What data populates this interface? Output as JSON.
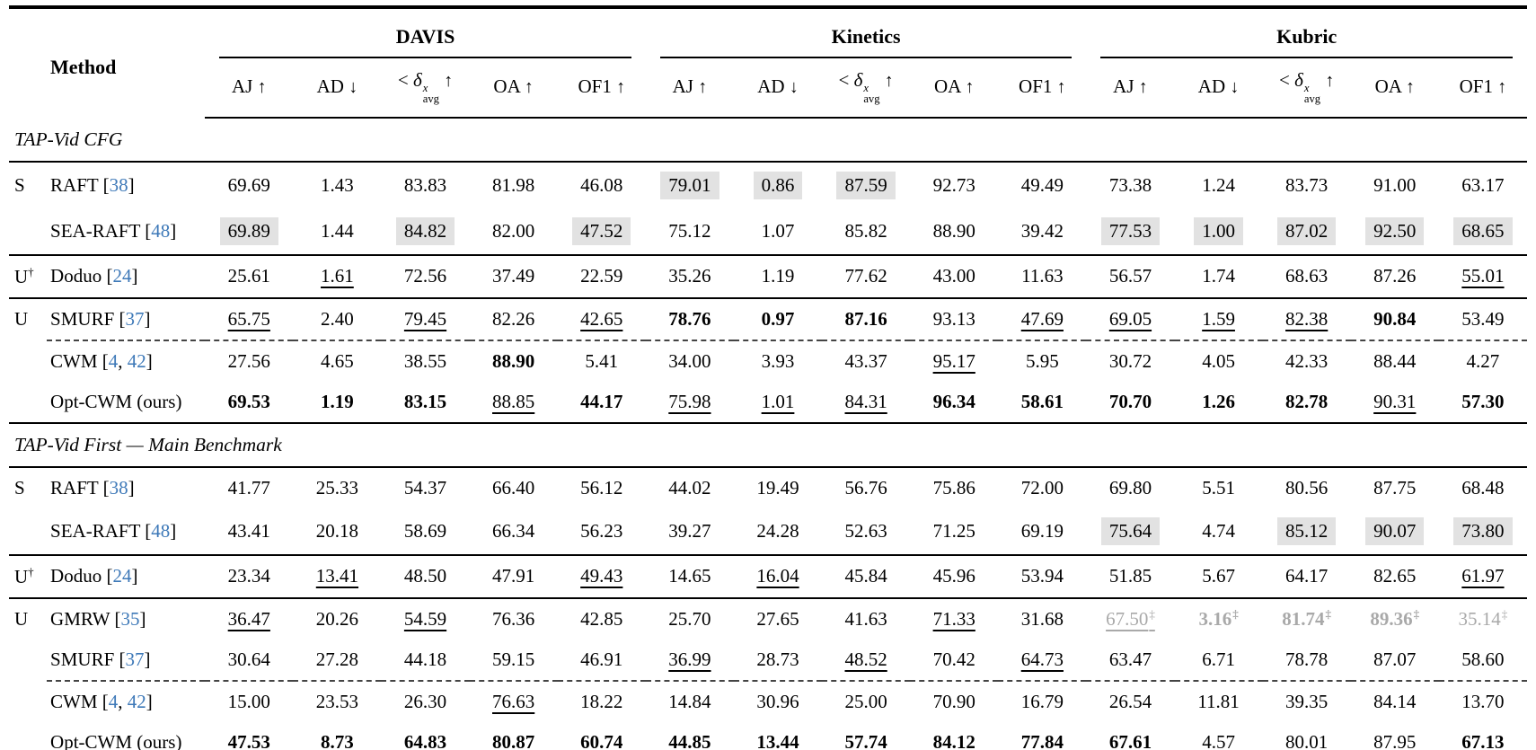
{
  "table": {
    "method_header": "Method",
    "groups": [
      "DAVIS",
      "Kinetics",
      "Kubric"
    ],
    "metrics": [
      {
        "label": "AJ",
        "arrow": "↑"
      },
      {
        "label": "AD",
        "arrow": "↓"
      },
      {
        "delta": "δ",
        "prefix": "<",
        "sup": "x",
        "sub": "avg",
        "arrow": "↑"
      },
      {
        "label": "OA",
        "arrow": "↑"
      },
      {
        "label": "OF1",
        "arrow": "↑"
      }
    ],
    "style_legend": {
      "b": "bold-best",
      "u": "underline-second-best",
      "h": "gray-highlight",
      "g": "gray-text",
      "d": "double-dagger"
    },
    "colors": {
      "cite_blue": "#3e79b8",
      "highlight_gray": "#e2e2e2",
      "gray_text": "#a9a9a9"
    },
    "sections": [
      {
        "title": "TAP-Vid CFG",
        "rows": [
          {
            "group": "S",
            "group_sup": "",
            "method": "RAFT",
            "cites": [
              "38"
            ],
            "rule": "",
            "cells": [
              [
                "69.69",
                ""
              ],
              [
                "1.43",
                ""
              ],
              [
                "83.83",
                ""
              ],
              [
                "81.98",
                ""
              ],
              [
                "46.08",
                ""
              ],
              [
                "79.01",
                "h"
              ],
              [
                "0.86",
                "h"
              ],
              [
                "87.59",
                "h"
              ],
              [
                "92.73",
                ""
              ],
              [
                "49.49",
                ""
              ],
              [
                "73.38",
                ""
              ],
              [
                "1.24",
                ""
              ],
              [
                "83.73",
                ""
              ],
              [
                "91.00",
                ""
              ],
              [
                "63.17",
                ""
              ]
            ]
          },
          {
            "group": "",
            "group_sup": "",
            "method": "SEA-RAFT",
            "cites": [
              "48"
            ],
            "rule": "",
            "cells": [
              [
                "69.89",
                "h"
              ],
              [
                "1.44",
                ""
              ],
              [
                "84.82",
                "h"
              ],
              [
                "82.00",
                ""
              ],
              [
                "47.52",
                "h"
              ],
              [
                "75.12",
                ""
              ],
              [
                "1.07",
                ""
              ],
              [
                "85.82",
                ""
              ],
              [
                "88.90",
                ""
              ],
              [
                "39.42",
                ""
              ],
              [
                "77.53",
                "h"
              ],
              [
                "1.00",
                "h"
              ],
              [
                "87.02",
                "h"
              ],
              [
                "92.50",
                "h"
              ],
              [
                "68.65",
                "h"
              ]
            ]
          },
          {
            "group": "U",
            "group_sup": "†",
            "method": "Doduo",
            "cites": [
              "24"
            ],
            "rule": "solid",
            "cells": [
              [
                "25.61",
                ""
              ],
              [
                "1.61",
                "u"
              ],
              [
                "72.56",
                ""
              ],
              [
                "37.49",
                ""
              ],
              [
                "22.59",
                ""
              ],
              [
                "35.26",
                ""
              ],
              [
                "1.19",
                ""
              ],
              [
                "77.62",
                ""
              ],
              [
                "43.00",
                ""
              ],
              [
                "11.63",
                ""
              ],
              [
                "56.57",
                ""
              ],
              [
                "1.74",
                ""
              ],
              [
                "68.63",
                ""
              ],
              [
                "87.26",
                ""
              ],
              [
                "55.01",
                "u"
              ]
            ]
          },
          {
            "group": "U",
            "group_sup": "",
            "method": "SMURF",
            "cites": [
              "37"
            ],
            "rule": "solid",
            "cells": [
              [
                "65.75",
                "u"
              ],
              [
                "2.40",
                ""
              ],
              [
                "79.45",
                "u"
              ],
              [
                "82.26",
                ""
              ],
              [
                "42.65",
                "u"
              ],
              [
                "78.76",
                "b"
              ],
              [
                "0.97",
                "b"
              ],
              [
                "87.16",
                "b"
              ],
              [
                "93.13",
                ""
              ],
              [
                "47.69",
                "u"
              ],
              [
                "69.05",
                "u"
              ],
              [
                "1.59",
                "u"
              ],
              [
                "82.38",
                "u"
              ],
              [
                "90.84",
                "b"
              ],
              [
                "53.49",
                ""
              ]
            ]
          },
          {
            "group": "",
            "group_sup": "",
            "method": "CWM",
            "cites": [
              "4",
              "42"
            ],
            "rule": "dashed",
            "cells": [
              [
                "27.56",
                ""
              ],
              [
                "4.65",
                ""
              ],
              [
                "38.55",
                ""
              ],
              [
                "88.90",
                "b"
              ],
              [
                "5.41",
                ""
              ],
              [
                "34.00",
                ""
              ],
              [
                "3.93",
                ""
              ],
              [
                "43.37",
                ""
              ],
              [
                "95.17",
                "u"
              ],
              [
                "5.95",
                ""
              ],
              [
                "30.72",
                ""
              ],
              [
                "4.05",
                ""
              ],
              [
                "42.33",
                ""
              ],
              [
                "88.44",
                ""
              ],
              [
                "4.27",
                ""
              ]
            ]
          },
          {
            "group": "",
            "group_sup": "",
            "method": "Opt-CWM (ours)",
            "cites": [],
            "rule": "",
            "cells": [
              [
                "69.53",
                "b"
              ],
              [
                "1.19",
                "b"
              ],
              [
                "83.15",
                "b"
              ],
              [
                "88.85",
                "u"
              ],
              [
                "44.17",
                "b"
              ],
              [
                "75.98",
                "u"
              ],
              [
                "1.01",
                "u"
              ],
              [
                "84.31",
                "u"
              ],
              [
                "96.34",
                "b"
              ],
              [
                "58.61",
                "b"
              ],
              [
                "70.70",
                "b"
              ],
              [
                "1.26",
                "b"
              ],
              [
                "82.78",
                "b"
              ],
              [
                "90.31",
                "u"
              ],
              [
                "57.30",
                "b"
              ]
            ]
          }
        ]
      },
      {
        "title": "TAP-Vid First — Main Benchmark",
        "rows": [
          {
            "group": "S",
            "group_sup": "",
            "method": "RAFT",
            "cites": [
              "38"
            ],
            "rule": "",
            "cells": [
              [
                "41.77",
                ""
              ],
              [
                "25.33",
                ""
              ],
              [
                "54.37",
                ""
              ],
              [
                "66.40",
                ""
              ],
              [
                "56.12",
                ""
              ],
              [
                "44.02",
                ""
              ],
              [
                "19.49",
                ""
              ],
              [
                "56.76",
                ""
              ],
              [
                "75.86",
                ""
              ],
              [
                "72.00",
                ""
              ],
              [
                "69.80",
                ""
              ],
              [
                "5.51",
                ""
              ],
              [
                "80.56",
                ""
              ],
              [
                "87.75",
                ""
              ],
              [
                "68.48",
                ""
              ]
            ]
          },
          {
            "group": "",
            "group_sup": "",
            "method": "SEA-RAFT",
            "cites": [
              "48"
            ],
            "rule": "",
            "cells": [
              [
                "43.41",
                ""
              ],
              [
                "20.18",
                ""
              ],
              [
                "58.69",
                ""
              ],
              [
                "66.34",
                ""
              ],
              [
                "56.23",
                ""
              ],
              [
                "39.27",
                ""
              ],
              [
                "24.28",
                ""
              ],
              [
                "52.63",
                ""
              ],
              [
                "71.25",
                ""
              ],
              [
                "69.19",
                ""
              ],
              [
                "75.64",
                "h"
              ],
              [
                "4.74",
                ""
              ],
              [
                "85.12",
                "h"
              ],
              [
                "90.07",
                "h"
              ],
              [
                "73.80",
                "h"
              ]
            ]
          },
          {
            "group": "U",
            "group_sup": "†",
            "method": "Doduo",
            "cites": [
              "24"
            ],
            "rule": "solid",
            "cells": [
              [
                "23.34",
                ""
              ],
              [
                "13.41",
                "u"
              ],
              [
                "48.50",
                ""
              ],
              [
                "47.91",
                ""
              ],
              [
                "49.43",
                "u"
              ],
              [
                "14.65",
                ""
              ],
              [
                "16.04",
                "u"
              ],
              [
                "45.84",
                ""
              ],
              [
                "45.96",
                ""
              ],
              [
                "53.94",
                ""
              ],
              [
                "51.85",
                ""
              ],
              [
                "5.67",
                ""
              ],
              [
                "64.17",
                ""
              ],
              [
                "82.65",
                ""
              ],
              [
                "61.97",
                "u"
              ]
            ]
          },
          {
            "group": "U",
            "group_sup": "",
            "method": "GMRW",
            "cites": [
              "35"
            ],
            "rule": "solid",
            "cells": [
              [
                "36.47",
                "u"
              ],
              [
                "20.26",
                ""
              ],
              [
                "54.59",
                "u"
              ],
              [
                "76.36",
                ""
              ],
              [
                "42.85",
                ""
              ],
              [
                "25.70",
                ""
              ],
              [
                "27.65",
                ""
              ],
              [
                "41.63",
                ""
              ],
              [
                "71.33",
                "u"
              ],
              [
                "31.68",
                ""
              ],
              [
                "67.50",
                "gud"
              ],
              [
                "3.16",
                "gbd"
              ],
              [
                "81.74",
                "gbd"
              ],
              [
                "89.36",
                "gbd"
              ],
              [
                "35.14",
                "gd"
              ]
            ]
          },
          {
            "group": "",
            "group_sup": "",
            "method": "SMURF",
            "cites": [
              "37"
            ],
            "rule": "",
            "cells": [
              [
                "30.64",
                ""
              ],
              [
                "27.28",
                ""
              ],
              [
                "44.18",
                ""
              ],
              [
                "59.15",
                ""
              ],
              [
                "46.91",
                ""
              ],
              [
                "36.99",
                "u"
              ],
              [
                "28.73",
                ""
              ],
              [
                "48.52",
                "u"
              ],
              [
                "70.42",
                ""
              ],
              [
                "64.73",
                "u"
              ],
              [
                "63.47",
                ""
              ],
              [
                "6.71",
                ""
              ],
              [
                "78.78",
                ""
              ],
              [
                "87.07",
                ""
              ],
              [
                "58.60",
                ""
              ]
            ]
          },
          {
            "group": "",
            "group_sup": "",
            "method": "CWM",
            "cites": [
              "4",
              "42"
            ],
            "rule": "dashed",
            "cells": [
              [
                "15.00",
                ""
              ],
              [
                "23.53",
                ""
              ],
              [
                "26.30",
                ""
              ],
              [
                "76.63",
                "u"
              ],
              [
                "18.22",
                ""
              ],
              [
                "14.84",
                ""
              ],
              [
                "30.96",
                ""
              ],
              [
                "25.00",
                ""
              ],
              [
                "70.90",
                ""
              ],
              [
                "16.79",
                ""
              ],
              [
                "26.54",
                ""
              ],
              [
                "11.81",
                ""
              ],
              [
                "39.35",
                ""
              ],
              [
                "84.14",
                ""
              ],
              [
                "13.70",
                ""
              ]
            ]
          },
          {
            "group": "",
            "group_sup": "",
            "method": "Opt-CWM (ours)",
            "cites": [],
            "rule": "",
            "cells": [
              [
                "47.53",
                "b"
              ],
              [
                "8.73",
                "b"
              ],
              [
                "64.83",
                "b"
              ],
              [
                "80.87",
                "b"
              ],
              [
                "60.74",
                "b"
              ],
              [
                "44.85",
                "b"
              ],
              [
                "13.44",
                "b"
              ],
              [
                "57.74",
                "b"
              ],
              [
                "84.12",
                "b"
              ],
              [
                "77.84",
                "b"
              ],
              [
                "67.61",
                "b"
              ],
              [
                "4.57",
                "u"
              ],
              [
                "80.01",
                "u"
              ],
              [
                "87.95",
                "u"
              ],
              [
                "67.13",
                "b"
              ]
            ]
          }
        ]
      }
    ]
  }
}
